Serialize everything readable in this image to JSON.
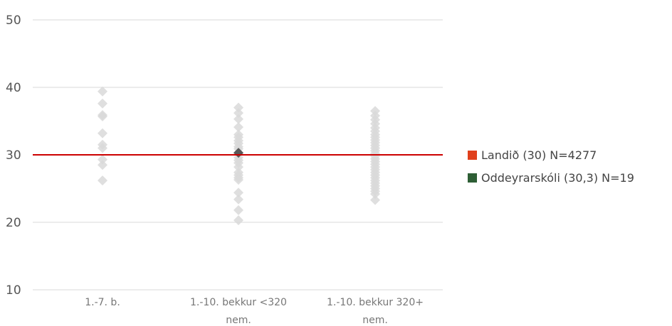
{
  "chart_data": {
    "type": "scatter",
    "title": "",
    "xlabel": "",
    "ylabel": "",
    "ylim": [
      10,
      50
    ],
    "yticks": [
      10,
      20,
      30,
      40,
      50
    ],
    "grid": true,
    "legend_position": "right",
    "categories": [
      {
        "line1": "1.-7. b.",
        "line2": ""
      },
      {
        "line1": "1.-10. bekkur <320",
        "line2": "nem."
      },
      {
        "line1": "1.-10. bekkur 320+",
        "line2": "nem."
      }
    ],
    "series": [
      {
        "name": "",
        "color": "#d9d9d9",
        "points": [
          {
            "category": 0,
            "values": [
              39.4,
              37.6,
              35.9,
              35.7,
              33.2,
              31.5,
              31.0,
              29.3,
              28.5,
              26.2
            ]
          },
          {
            "category": 1,
            "values": [
              37.0,
              36.2,
              35.3,
              34.1,
              33.0,
              32.6,
              32.1,
              31.7,
              31.2,
              30.9,
              30.2,
              29.6,
              29.2,
              28.8,
              28.2,
              27.4,
              27.0,
              26.6,
              26.3,
              24.4,
              23.4,
              21.8,
              20.3
            ]
          },
          {
            "category": 2,
            "values": [
              36.5,
              35.8,
              35.2,
              34.6,
              34.0,
              33.5,
              33.0,
              32.6,
              32.2,
              31.8,
              31.4,
              31.0,
              30.6,
              30.2,
              29.8,
              29.4,
              29.0,
              28.6,
              28.2,
              27.8,
              27.4,
              27.0,
              26.6,
              26.2,
              25.8,
              25.4,
              25.0,
              24.6,
              24.2,
              23.3
            ]
          }
        ]
      },
      {
        "name": "Oddeyrarskóli (30,3) N=19",
        "color": "#595959",
        "points": [
          {
            "category": 1,
            "values": [
              30.3
            ]
          }
        ]
      }
    ],
    "reference_line": {
      "name": "Landið (30) N=4277",
      "value": 30,
      "color": "#cc0000"
    },
    "legend": [
      {
        "label": "Landið (30) N=4277",
        "color": "#e0401c"
      },
      {
        "label": "Oddeyrarskóli (30,3) N=19",
        "color": "#2e5e35"
      }
    ]
  }
}
